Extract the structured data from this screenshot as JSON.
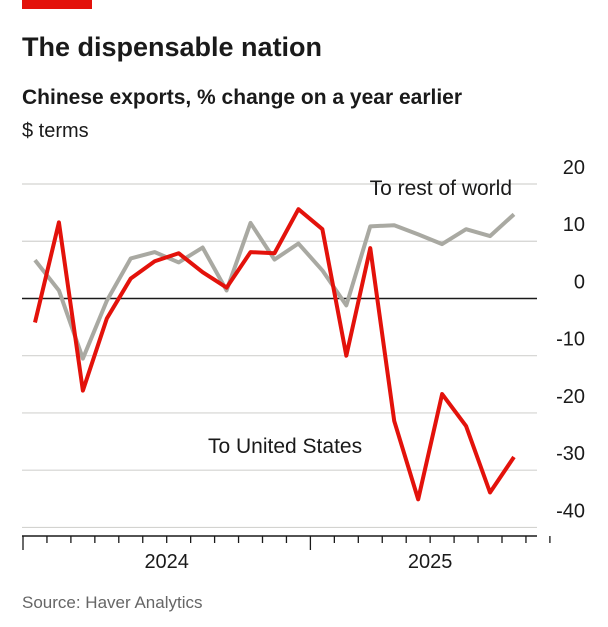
{
  "chart_data": {
    "type": "line",
    "title": "The dispensable nation",
    "subtitle": "Chinese exports, % change on a year earlier",
    "unit_note": "$ terms",
    "source": "Source: Haver Analytics",
    "categories": [
      null,
      null,
      null,
      null,
      null,
      null,
      null,
      null,
      null,
      null,
      null,
      null,
      null,
      null,
      null,
      null,
      null,
      null,
      null,
      null,
      null
    ],
    "year_labels": [
      "2024",
      "2025"
    ],
    "series": [
      {
        "name": "To rest of world",
        "color": "#a9a9a2",
        "values": [
          6.7,
          1.4,
          -10.5,
          -0.4,
          7.0,
          8.1,
          6.3,
          8.9,
          1.4,
          13.2,
          6.8,
          9.6,
          4.9,
          -1.2,
          12.6,
          12.8,
          11.2,
          9.5,
          12.1,
          10.9,
          14.7
        ]
      },
      {
        "name": "To United States",
        "color": "#e3120b",
        "values": [
          -4.2,
          13.3,
          -16.1,
          -3.5,
          3.5,
          6.5,
          7.9,
          4.6,
          1.9,
          8.1,
          7.9,
          15.6,
          12.1,
          -10,
          8.8,
          -21.4,
          -35.1,
          -16.7,
          -22.3,
          -33.9,
          -27.7
        ]
      }
    ],
    "ylim": [
      -41.5,
      20
    ],
    "yticks": [
      20,
      10,
      0,
      -10,
      -20,
      -30,
      -40
    ],
    "grid": true
  }
}
